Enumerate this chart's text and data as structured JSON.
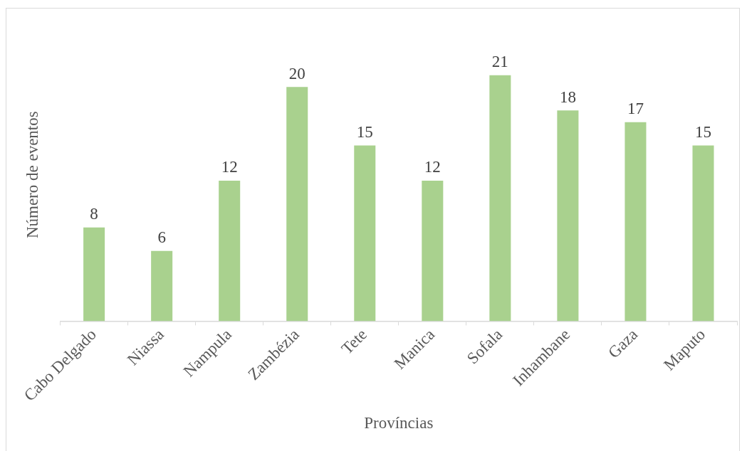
{
  "chart_data": {
    "type": "bar",
    "xlabel": "Províncias",
    "ylabel": "Número de eventos",
    "categories": [
      "Cabo Delgado",
      "Niassa",
      "Nampula",
      "Zambézia",
      "Tete",
      "Manica",
      "Sofala",
      "Inhambane",
      "Gaza",
      "Maputo"
    ],
    "values": [
      8,
      6,
      12,
      20,
      15,
      12,
      21,
      18,
      17,
      15
    ],
    "color": "#a9d18e",
    "data_labels": true
  }
}
